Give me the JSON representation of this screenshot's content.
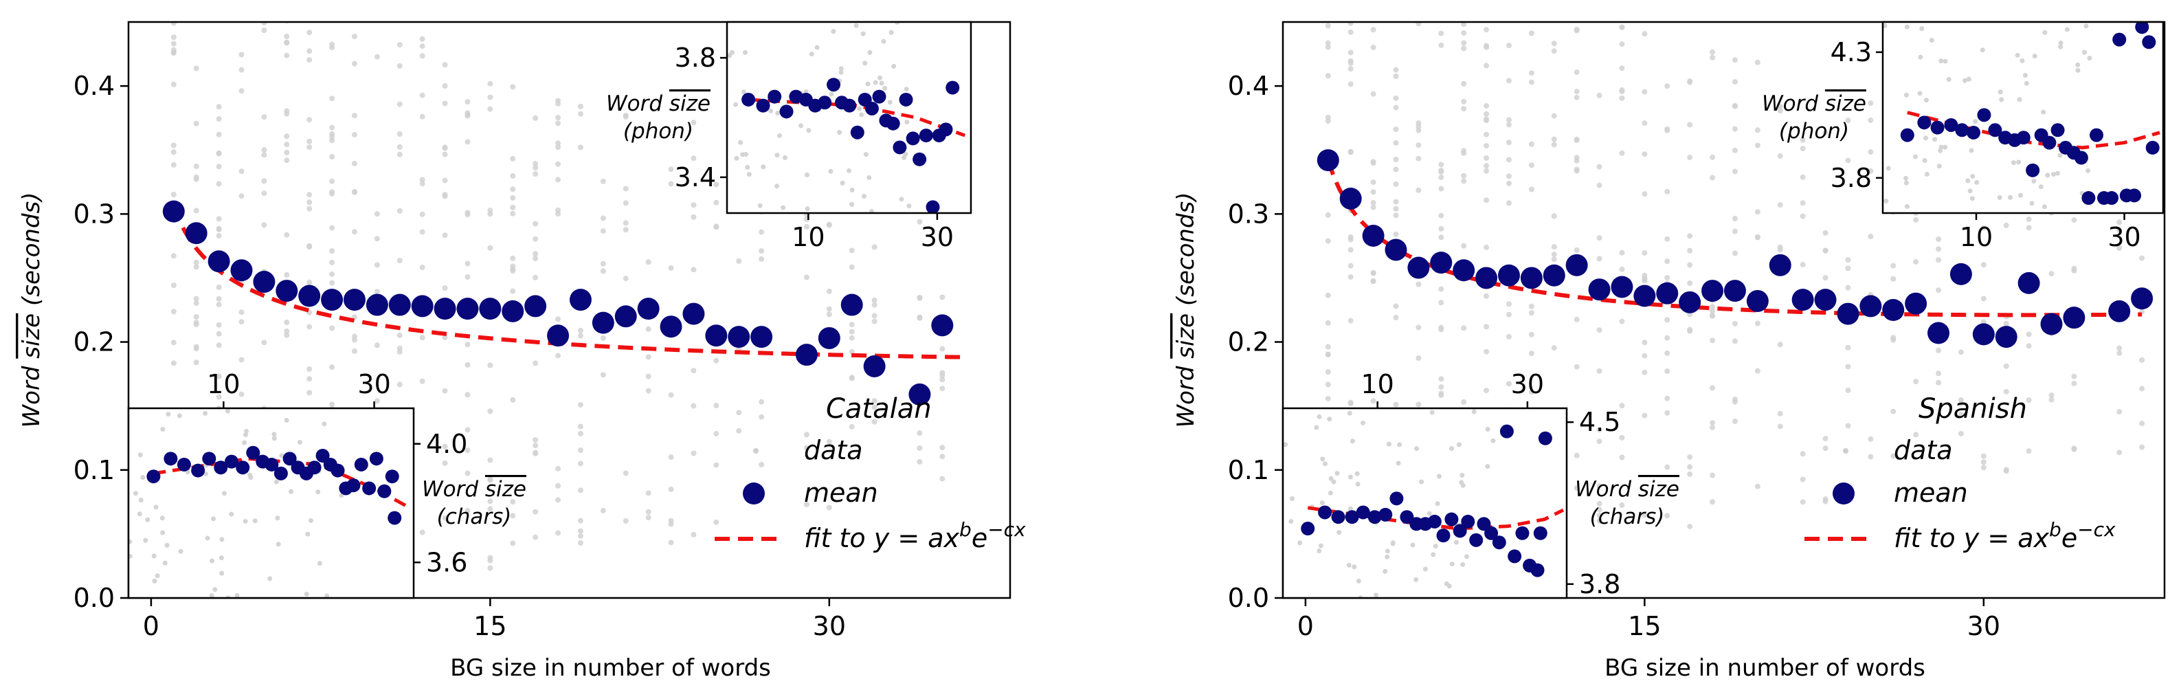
{
  "chart_data": [
    {
      "type": "scatter",
      "language": "Catalan",
      "xlabel": "BG size in number of words",
      "ylabel": [
        "Word ",
        "size",
        " (seconds)"
      ],
      "xlim": [
        -1,
        38
      ],
      "ylim": [
        0,
        0.45
      ],
      "xticks": [
        0,
        15,
        30
      ],
      "yticks": [
        0.0,
        0.1,
        0.2,
        0.3,
        0.4
      ],
      "legend": {
        "data": "data",
        "mean": "mean",
        "fit": "fit to ",
        "fit_formula": "y = ax^b e^-cx"
      },
      "mean_points": [
        [
          1,
          0.302
        ],
        [
          2,
          0.285
        ],
        [
          3,
          0.263
        ],
        [
          4,
          0.256
        ],
        [
          5,
          0.247
        ],
        [
          6,
          0.24
        ],
        [
          7,
          0.236
        ],
        [
          8,
          0.233
        ],
        [
          9,
          0.233
        ],
        [
          10,
          0.229
        ],
        [
          11,
          0.229
        ],
        [
          12,
          0.228
        ],
        [
          13,
          0.226
        ],
        [
          14,
          0.226
        ],
        [
          15,
          0.226
        ],
        [
          16,
          0.224
        ],
        [
          17,
          0.228
        ],
        [
          18,
          0.205
        ],
        [
          19,
          0.233
        ],
        [
          20,
          0.215
        ],
        [
          21,
          0.22
        ],
        [
          22,
          0.226
        ],
        [
          23,
          0.212
        ],
        [
          24,
          0.222
        ],
        [
          25,
          0.205
        ],
        [
          26,
          0.204
        ],
        [
          27,
          0.204
        ],
        [
          29,
          0.19
        ],
        [
          30,
          0.203
        ],
        [
          31,
          0.229
        ],
        [
          32,
          0.181
        ],
        [
          34,
          0.159
        ],
        [
          35,
          0.213
        ]
      ],
      "fit": {
        "a": 0.305,
        "b": -0.17,
        "c": -0.0035,
        "x_range": [
          1,
          36
        ]
      },
      "scatter_x": [
        1,
        2,
        3,
        4,
        5,
        6,
        7,
        8,
        9,
        10,
        11,
        12,
        13,
        14,
        15,
        16,
        17,
        18,
        19,
        20,
        21,
        22,
        23,
        24,
        25,
        26,
        27,
        29,
        30,
        31,
        32,
        34,
        35
      ],
      "inset_phon": {
        "ylabel": [
          "Word ",
          "size",
          "(phon)"
        ],
        "xlim": [
          5,
          40
        ],
        "ylim": [
          3.28,
          3.92
        ],
        "xticks": [
          10,
          30
        ],
        "yticks": [
          3.4,
          3.8
        ],
        "points": [
          [
            6,
            3.66
          ],
          [
            6.8,
            3.64
          ],
          [
            7.5,
            3.67
          ],
          [
            8.3,
            3.62
          ],
          [
            9,
            3.67
          ],
          [
            9.8,
            3.66
          ],
          [
            10.6,
            3.64
          ],
          [
            11.5,
            3.65
          ],
          [
            12.4,
            3.71
          ],
          [
            13.3,
            3.65
          ],
          [
            14.2,
            3.64
          ],
          [
            15.2,
            3.55
          ],
          [
            16.2,
            3.66
          ],
          [
            17.2,
            3.63
          ],
          [
            18.3,
            3.67
          ],
          [
            19.4,
            3.59
          ],
          [
            20.6,
            3.58
          ],
          [
            21.8,
            3.5
          ],
          [
            23,
            3.66
          ],
          [
            24.4,
            3.53
          ],
          [
            25.8,
            3.46
          ],
          [
            27.3,
            3.54
          ],
          [
            28.9,
            3.3
          ],
          [
            30.5,
            3.54
          ],
          [
            32.3,
            3.56
          ],
          [
            34.2,
            3.7
          ]
        ],
        "fit": [
          [
            6,
            3.66
          ],
          [
            15,
            3.64
          ],
          [
            25,
            3.6
          ],
          [
            38,
            3.54
          ]
        ]
      },
      "inset_chars": {
        "ylabel": [
          "Word ",
          "size",
          "(chars)"
        ],
        "xlim": [
          5,
          40
        ],
        "ylim": [
          3.48,
          4.12
        ],
        "xticks": [
          10,
          30
        ],
        "yticks": [
          3.6,
          4.0
        ],
        "points": [
          [
            6,
            3.89
          ],
          [
            6.8,
            3.95
          ],
          [
            7.5,
            3.93
          ],
          [
            8.3,
            3.91
          ],
          [
            9,
            3.95
          ],
          [
            9.8,
            3.92
          ],
          [
            10.6,
            3.94
          ],
          [
            11.5,
            3.92
          ],
          [
            12.4,
            3.97
          ],
          [
            13.3,
            3.94
          ],
          [
            14.2,
            3.93
          ],
          [
            15.2,
            3.9
          ],
          [
            16.2,
            3.95
          ],
          [
            17.2,
            3.92
          ],
          [
            18.3,
            3.9
          ],
          [
            19.4,
            3.92
          ],
          [
            20.6,
            3.96
          ],
          [
            21.8,
            3.93
          ],
          [
            23,
            3.91
          ],
          [
            24.4,
            3.85
          ],
          [
            25.8,
            3.86
          ],
          [
            27.3,
            3.93
          ],
          [
            28.9,
            3.85
          ],
          [
            30.5,
            3.95
          ],
          [
            32.3,
            3.84
          ],
          [
            34.2,
            3.89
          ],
          [
            34.8,
            3.75
          ]
        ],
        "fit": [
          [
            6,
            3.9
          ],
          [
            12,
            3.95
          ],
          [
            20,
            3.93
          ],
          [
            30,
            3.85
          ],
          [
            38,
            3.79
          ]
        ]
      }
    },
    {
      "type": "scatter",
      "language": "Spanish",
      "xlabel": "BG size in number of words",
      "ylabel": [
        "Word ",
        "size",
        " (seconds)"
      ],
      "xlim": [
        -1,
        38
      ],
      "ylim": [
        0,
        0.45
      ],
      "xticks": [
        0,
        15,
        30
      ],
      "yticks": [
        0.0,
        0.1,
        0.2,
        0.3,
        0.4
      ],
      "legend": {
        "data": "data",
        "mean": "mean",
        "fit": "fit to ",
        "fit_formula": "y = ax^b e^-cx"
      },
      "mean_points": [
        [
          1,
          0.342
        ],
        [
          2,
          0.312
        ],
        [
          3,
          0.283
        ],
        [
          4,
          0.272
        ],
        [
          5,
          0.258
        ],
        [
          6,
          0.262
        ],
        [
          7,
          0.256
        ],
        [
          8,
          0.25
        ],
        [
          9,
          0.252
        ],
        [
          10,
          0.25
        ],
        [
          11,
          0.252
        ],
        [
          12,
          0.26
        ],
        [
          13,
          0.241
        ],
        [
          14,
          0.243
        ],
        [
          15,
          0.236
        ],
        [
          16,
          0.238
        ],
        [
          17,
          0.231
        ],
        [
          18,
          0.24
        ],
        [
          19,
          0.24
        ],
        [
          20,
          0.232
        ],
        [
          21,
          0.26
        ],
        [
          22,
          0.233
        ],
        [
          23,
          0.233
        ],
        [
          24,
          0.222
        ],
        [
          25,
          0.228
        ],
        [
          26,
          0.225
        ],
        [
          27,
          0.23
        ],
        [
          28,
          0.207
        ],
        [
          29,
          0.253
        ],
        [
          30,
          0.206
        ],
        [
          31,
          0.204
        ],
        [
          32,
          0.246
        ],
        [
          33,
          0.214
        ],
        [
          34,
          0.219
        ],
        [
          36,
          0.224
        ],
        [
          37,
          0.234
        ]
      ],
      "fit": {
        "a": 0.34,
        "b": -0.175,
        "c": -0.0055,
        "x_range": [
          1,
          37
        ]
      },
      "scatter_x": [
        1,
        2,
        3,
        4,
        5,
        6,
        7,
        8,
        9,
        10,
        11,
        12,
        13,
        14,
        15,
        16,
        17,
        18,
        19,
        20,
        21,
        22,
        23,
        24,
        25,
        26,
        27,
        28,
        29,
        30,
        31,
        32,
        33,
        34,
        36,
        37
      ],
      "inset_phon": {
        "ylabel": [
          "Word ",
          "size",
          "(phon)"
        ],
        "xlim": [
          5,
          40
        ],
        "ylim": [
          3.66,
          4.42
        ],
        "xticks": [
          10,
          30
        ],
        "yticks": [
          3.8,
          4.3
        ],
        "points": [
          [
            6,
            3.97
          ],
          [
            6.8,
            4.02
          ],
          [
            7.5,
            4.0
          ],
          [
            8.3,
            4.01
          ],
          [
            9,
            3.99
          ],
          [
            9.8,
            3.98
          ],
          [
            10.6,
            4.05
          ],
          [
            11.5,
            3.99
          ],
          [
            12.4,
            3.96
          ],
          [
            13.3,
            3.95
          ],
          [
            14.2,
            3.96
          ],
          [
            15.2,
            3.83
          ],
          [
            16.2,
            3.97
          ],
          [
            17.2,
            3.94
          ],
          [
            18.3,
            3.99
          ],
          [
            19.4,
            3.92
          ],
          [
            20.6,
            3.9
          ],
          [
            21.8,
            3.88
          ],
          [
            23,
            3.72
          ],
          [
            24.4,
            3.97
          ],
          [
            25.8,
            3.72
          ],
          [
            27.3,
            3.72
          ],
          [
            28.9,
            4.35
          ],
          [
            30.5,
            3.73
          ],
          [
            32.3,
            3.73
          ],
          [
            34.2,
            4.4
          ],
          [
            36,
            4.34
          ],
          [
            37,
            3.92
          ]
        ],
        "fit": [
          [
            6,
            4.06
          ],
          [
            10,
            3.99
          ],
          [
            15,
            3.94
          ],
          [
            22,
            3.92
          ],
          [
            30,
            3.94
          ],
          [
            39,
            3.98
          ]
        ]
      },
      "inset_chars": {
        "ylabel": [
          "Word ",
          "size",
          "(chars)"
        ],
        "xlim": [
          5,
          40
        ],
        "ylim": [
          3.74,
          4.56
        ],
        "xticks": [
          10,
          30
        ],
        "yticks": [
          3.8,
          4.5
        ],
        "points": [
          [
            6,
            4.04
          ],
          [
            6.8,
            4.11
          ],
          [
            7.5,
            4.09
          ],
          [
            8.3,
            4.09
          ],
          [
            9,
            4.11
          ],
          [
            9.8,
            4.09
          ],
          [
            10.6,
            4.1
          ],
          [
            11.5,
            4.17
          ],
          [
            12.4,
            4.09
          ],
          [
            13.3,
            4.06
          ],
          [
            14.2,
            4.06
          ],
          [
            15.2,
            4.07
          ],
          [
            16.2,
            4.01
          ],
          [
            17.2,
            4.08
          ],
          [
            18.3,
            4.03
          ],
          [
            19.4,
            4.07
          ],
          [
            20.6,
            3.99
          ],
          [
            21.8,
            4.06
          ],
          [
            23,
            4.02
          ],
          [
            24.4,
            3.98
          ],
          [
            25.8,
            4.46
          ],
          [
            27.3,
            3.92
          ],
          [
            28.9,
            4.02
          ],
          [
            30.5,
            3.88
          ],
          [
            32.3,
            3.86
          ],
          [
            34.2,
            4.43
          ],
          [
            33,
            4.02
          ]
        ],
        "fit": [
          [
            6,
            4.13
          ],
          [
            12,
            4.07
          ],
          [
            18,
            4.04
          ],
          [
            26,
            4.05
          ],
          [
            34,
            4.08
          ],
          [
            39,
            4.12
          ]
        ]
      }
    }
  ]
}
